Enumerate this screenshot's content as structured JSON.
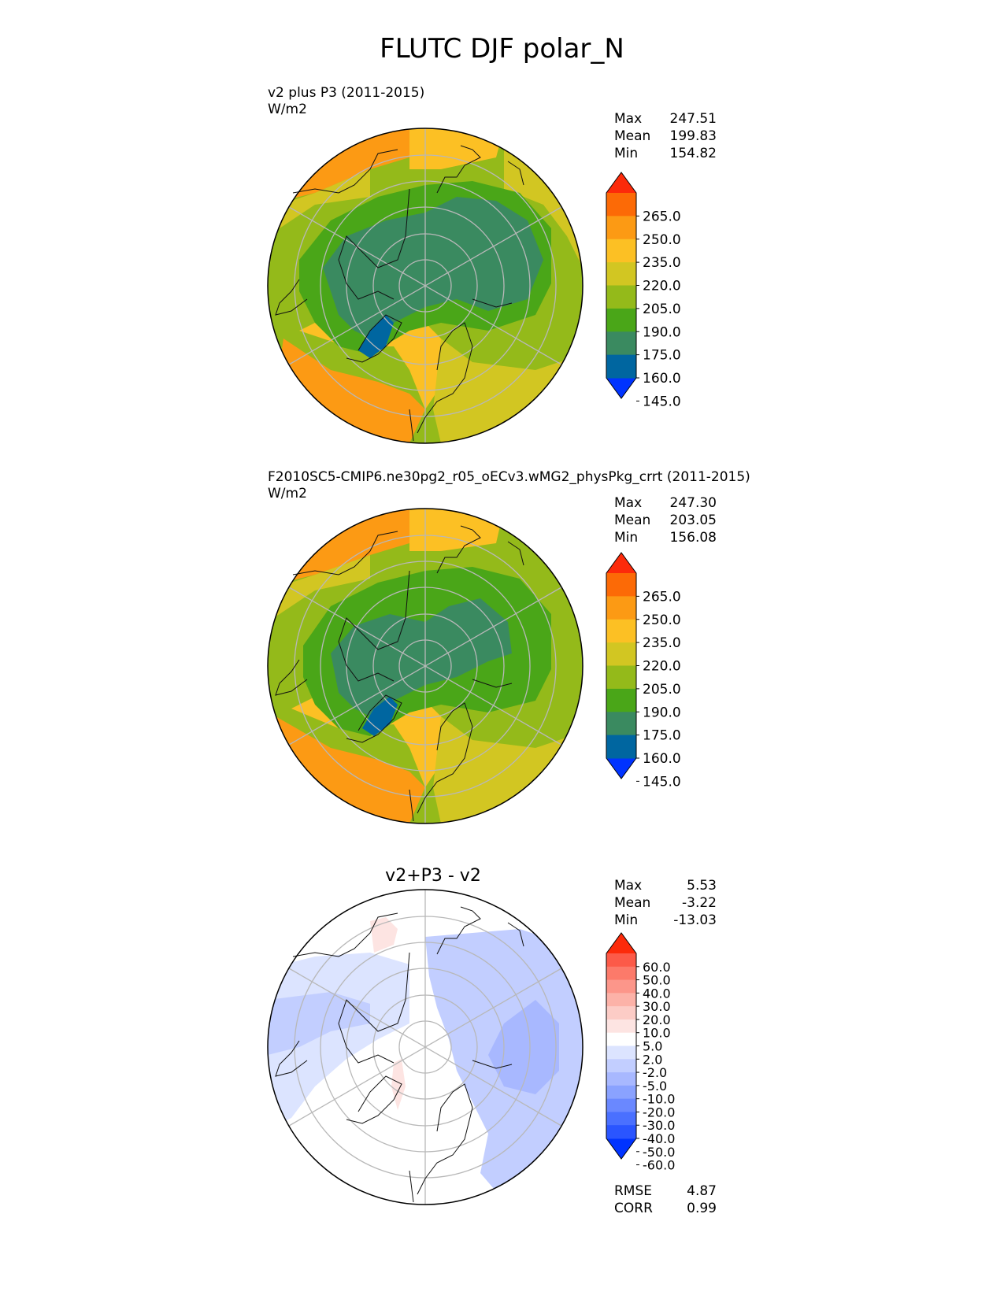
{
  "title": "FLUTC DJF polar_N",
  "panels": [
    {
      "id": "test",
      "title_line1": "v2 plus P3 (2011-2015)",
      "title_line2": "W/m2",
      "stats": {
        "max_label": "Max",
        "max": "247.51",
        "mean_label": "Mean",
        "mean": "199.83",
        "min_label": "Min",
        "min": "154.82"
      },
      "colorbar": {
        "labels": [
          "265.0",
          "250.0",
          "235.0",
          "220.0",
          "205.0",
          "190.0",
          "175.0",
          "160.0",
          "145.0"
        ]
      }
    },
    {
      "id": "reference",
      "title_line1": "F2010SC5-CMIP6.ne30pg2_r05_oECv3.wMG2_physPkg_crrt (2011-2015)",
      "title_line2": "W/m2",
      "stats": {
        "max_label": "Max",
        "max": "247.30",
        "mean_label": "Mean",
        "mean": "203.05",
        "min_label": "Min",
        "min": "156.08"
      },
      "colorbar": {
        "labels": [
          "265.0",
          "250.0",
          "235.0",
          "220.0",
          "205.0",
          "190.0",
          "175.0",
          "160.0",
          "145.0"
        ]
      }
    },
    {
      "id": "diff",
      "title": "v2+P3 - v2",
      "stats": {
        "max_label": "Max",
        "max": "5.53",
        "mean_label": "Mean",
        "mean": "-3.22",
        "min_label": "Min",
        "min": "-13.03"
      },
      "extra_stats": {
        "rmse_label": "RMSE",
        "rmse": "4.87",
        "corr_label": "CORR",
        "corr": "0.99"
      },
      "colorbar": {
        "labels": [
          "60.0",
          "50.0",
          "40.0",
          "30.0",
          "20.0",
          "10.0",
          "5.0",
          "2.0",
          "-2.0",
          "-5.0",
          "-10.0",
          "-20.0",
          "-30.0",
          "-40.0",
          "-50.0",
          "-60.0"
        ]
      }
    }
  ],
  "colors": {
    "field": [
      "#0033ff",
      "#0066a0",
      "#3a8a60",
      "#4aa618",
      "#94ba1a",
      "#d2c622",
      "#fcc024",
      "#fc9a14",
      "#fc6a06",
      "#fc2a0a"
    ],
    "diff": [
      "#0033ff",
      "#2a55ff",
      "#4a70ff",
      "#6a88ff",
      "#8aa2ff",
      "#a8b8ff",
      "#c2ceff",
      "#dce4ff",
      "#ffffff",
      "#fde4e2",
      "#fcccc6",
      "#fcb2a8",
      "#fc968a",
      "#fc7a6a",
      "#fc5a48",
      "#fc2a0a"
    ]
  }
}
